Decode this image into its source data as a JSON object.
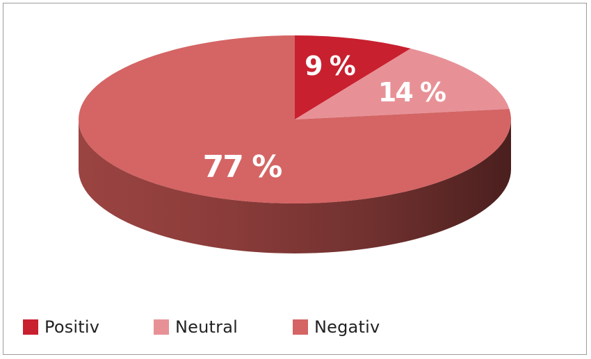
{
  "chart_data": {
    "type": "pie",
    "series": [
      {
        "name": "Positiv",
        "value": 9,
        "label": "9 %",
        "color": "#c8202f"
      },
      {
        "name": "Neutral",
        "value": 14,
        "label": "14 %",
        "color": "#e79197"
      },
      {
        "name": "Negativ",
        "value": 77,
        "label": "77 %",
        "color": "#d46564"
      }
    ],
    "legend_placement": "bottom",
    "style": "3d"
  }
}
